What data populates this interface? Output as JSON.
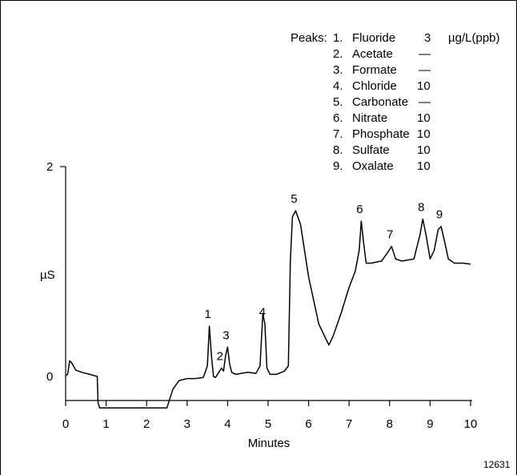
{
  "chart_data": {
    "type": "line",
    "title": "",
    "xlabel": "Minutes",
    "ylabel": "µS",
    "xlim": [
      0,
      10
    ],
    "ylim": [
      -0.3,
      2
    ],
    "x_ticks": [
      "0",
      "1",
      "2",
      "3",
      "4",
      "5",
      "6",
      "7",
      "8",
      "9",
      "10"
    ],
    "y_ticks": [
      "0",
      "2"
    ],
    "grid": false,
    "series": [
      {
        "x": [
          0,
          0.05,
          0.1,
          0.15,
          0.25,
          0.4,
          0.6,
          0.78,
          0.8,
          0.84,
          0.88,
          2.5,
          2.65,
          2.8,
          3.0,
          3.2,
          3.4,
          3.5,
          3.55,
          3.6,
          3.65,
          3.7,
          3.85,
          3.9,
          3.95,
          4.0,
          4.05,
          4.1,
          4.2,
          4.5,
          4.7,
          4.8,
          4.87,
          4.92,
          4.97,
          5.05,
          5.2,
          5.4,
          5.5,
          5.55,
          5.6,
          5.68,
          5.8,
          6.0,
          6.25,
          6.5,
          6.6,
          6.8,
          7.0,
          7.15,
          7.25,
          7.3,
          7.35,
          7.42,
          7.55,
          7.8,
          7.95,
          8.05,
          8.15,
          8.3,
          8.6,
          8.75,
          8.82,
          8.9,
          9.0,
          9.1,
          9.2,
          9.27,
          9.35,
          9.45,
          9.6,
          9.8,
          10.0
        ],
        "y": [
          0.01,
          0.02,
          0.15,
          0.13,
          0.06,
          0.04,
          0.02,
          0.0,
          -0.25,
          -0.3,
          -0.3,
          -0.3,
          -0.12,
          -0.04,
          -0.02,
          -0.02,
          -0.01,
          0.1,
          0.48,
          0.2,
          0.0,
          -0.01,
          0.08,
          0.05,
          0.2,
          0.28,
          0.12,
          0.04,
          0.02,
          0.04,
          0.03,
          0.1,
          0.6,
          0.5,
          0.08,
          0.02,
          0.02,
          0.05,
          0.1,
          1.1,
          1.52,
          1.58,
          1.45,
          0.95,
          0.5,
          0.3,
          0.38,
          0.6,
          0.85,
          1.0,
          1.2,
          1.48,
          1.3,
          1.08,
          1.08,
          1.1,
          1.18,
          1.24,
          1.12,
          1.1,
          1.12,
          1.35,
          1.5,
          1.35,
          1.12,
          1.2,
          1.4,
          1.43,
          1.3,
          1.12,
          1.08,
          1.08,
          1.07
        ]
      }
    ],
    "annotations": [
      "1",
      "2",
      "3",
      "4",
      "5",
      "6",
      "7",
      "8",
      "9"
    ],
    "legend": {
      "header": "Peaks:",
      "unit": "µg/L(ppb)",
      "items": [
        {
          "num": "1.",
          "name": "Fluoride",
          "value": "3"
        },
        {
          "num": "2.",
          "name": "Acetate",
          "value": "—"
        },
        {
          "num": "3.",
          "name": "Formate",
          "value": "—"
        },
        {
          "num": "4.",
          "name": "Chloride",
          "value": "10"
        },
        {
          "num": "5.",
          "name": "Carbonate",
          "value": "—"
        },
        {
          "num": "6.",
          "name": "Nitrate",
          "value": "10"
        },
        {
          "num": "7.",
          "name": "Phosphate",
          "value": "10"
        },
        {
          "num": "8.",
          "name": "Sulfate",
          "value": "10"
        },
        {
          "num": "9.",
          "name": "Oxalate",
          "value": "10"
        }
      ]
    },
    "figure_id": "12631"
  }
}
